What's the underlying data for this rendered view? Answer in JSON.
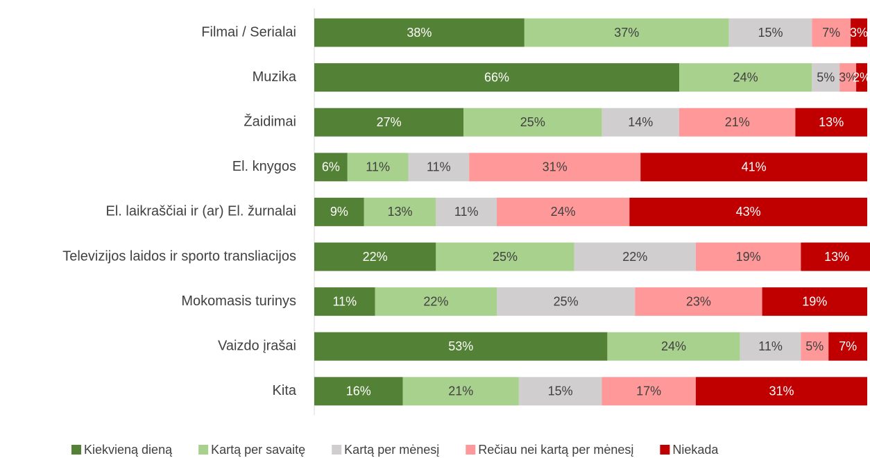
{
  "chart_data": {
    "type": "stacked_barh",
    "categories": [
      "Filmai / Serialai",
      "Muzika",
      "Žaidimai",
      "El. knygos",
      "El. laikraščiai ir (ar) El. žurnalai",
      "Televizijos laidos ir sporto transliacijos",
      "Mokomasis turinys",
      "Vaizdo įrašai",
      "Kita"
    ],
    "series": [
      {
        "name": "Kiekvieną dieną",
        "color": "#538135",
        "label_color": "#ffffff",
        "values": [
          38,
          66,
          27,
          6,
          9,
          22,
          11,
          53,
          16
        ],
        "value_labels": [
          "38%",
          "66%",
          "27%",
          "6%",
          "9%",
          "22%",
          "11%",
          "53%",
          "16%"
        ]
      },
      {
        "name": "Kartą per savaitę",
        "color": "#a9d18e",
        "label_color": "#404040",
        "values": [
          37,
          24,
          25,
          11,
          13,
          25,
          22,
          24,
          21
        ],
        "value_labels": [
          "37%",
          "24%",
          "25%",
          "11%",
          "13%",
          "25%",
          "22%",
          "24%",
          "21%"
        ]
      },
      {
        "name": "Kartą per mėnesį",
        "color": "#d0cece",
        "label_color": "#404040",
        "values": [
          15,
          5,
          14,
          11,
          11,
          22,
          25,
          11,
          15
        ],
        "value_labels": [
          "15%",
          "5%",
          "14%",
          "11%",
          "11%",
          "22%",
          "25%",
          "11%",
          "15%"
        ]
      },
      {
        "name": "Rečiau nei kartą per mėnesį",
        "color": "#ff9999",
        "label_color": "#404040",
        "values": [
          7,
          3,
          21,
          31,
          24,
          19,
          23,
          5,
          17
        ],
        "value_labels": [
          "7%",
          "3%",
          "21%",
          "31%",
          "24%",
          "19%",
          "23%",
          "5%",
          "17%"
        ]
      },
      {
        "name": "Niekada",
        "color": "#c00000",
        "label_color": "#ffffff",
        "values": [
          3,
          2,
          13,
          41,
          43,
          13,
          19,
          7,
          31
        ],
        "value_labels": [
          "3%",
          "2%",
          "13%",
          "41%",
          "43%",
          "13%",
          "19%",
          "7%",
          "31%"
        ]
      }
    ],
    "xlim": [
      0,
      100
    ]
  }
}
